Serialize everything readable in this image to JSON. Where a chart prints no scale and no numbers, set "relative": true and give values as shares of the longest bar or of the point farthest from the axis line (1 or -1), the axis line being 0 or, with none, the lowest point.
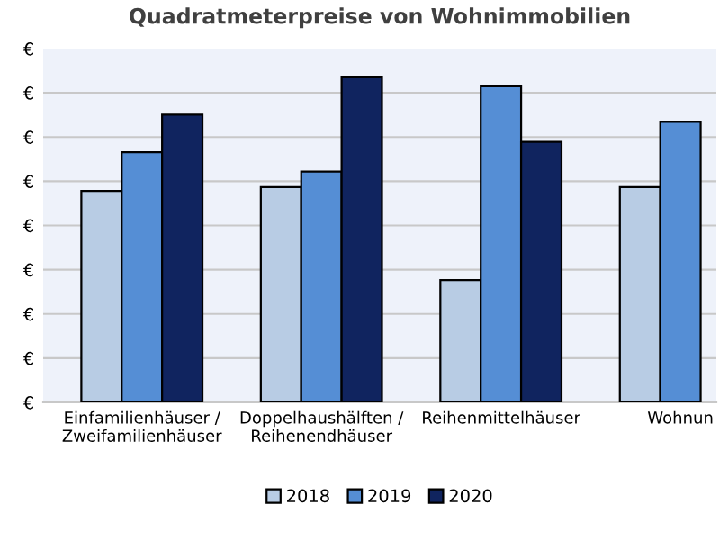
{
  "chart_data": {
    "type": "bar",
    "title": "Quadratmeterpreise von Wohnimmobilien",
    "categories": [
      "Einfamilienhäuser /\nZweifamilienhäuser",
      "Doppelhaushälften /\nReihenendhäuser",
      "Reihenmittelhäuser",
      "Wohnun"
    ],
    "relative": true,
    "series": [
      {
        "name": "2018",
        "color": "#b8cce4",
        "values": [
          0.65,
          0.662,
          0.376,
          0.662
        ]
      },
      {
        "name": "2019",
        "color": "#558ed5",
        "values": [
          0.769,
          0.71,
          0.972,
          0.863
        ]
      },
      {
        "name": "2020",
        "color": "#10245f",
        "values": [
          0.885,
          1,
          0.801,
          null
        ]
      }
    ],
    "annotations": [
      "€",
      "€",
      "€",
      "€",
      "€",
      "€",
      "€",
      "€",
      "€"
    ],
    "grid": "y",
    "legend": "bottom"
  }
}
